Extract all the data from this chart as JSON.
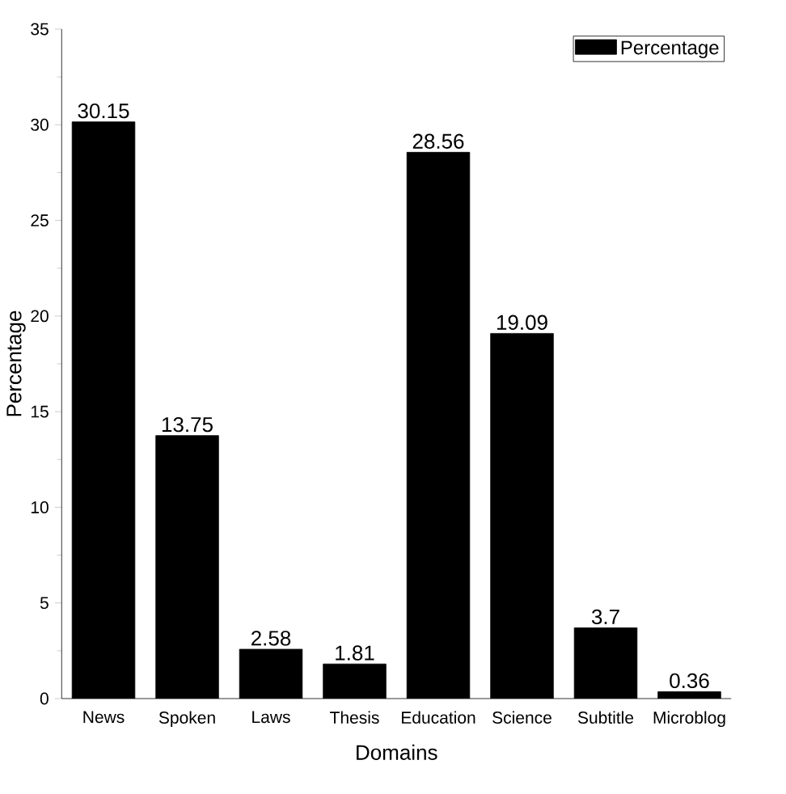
{
  "chart_data": {
    "type": "bar",
    "xlabel": "Domains",
    "ylabel": "Percentage",
    "categories": [
      "News",
      "Spoken",
      "Laws",
      "Thesis",
      "Education",
      "Science",
      "Subtitle",
      "Microblog"
    ],
    "series": [
      {
        "name": "Percentage",
        "color": "#000000",
        "values": [
          30.15,
          13.75,
          2.58,
          1.81,
          28.56,
          19.09,
          3.7,
          0.36
        ]
      }
    ],
    "ylim": [
      0,
      35
    ],
    "yticks": [
      0,
      5,
      10,
      15,
      20,
      25,
      30,
      35
    ],
    "data_labels": true,
    "legend": "top right",
    "grid": false
  }
}
